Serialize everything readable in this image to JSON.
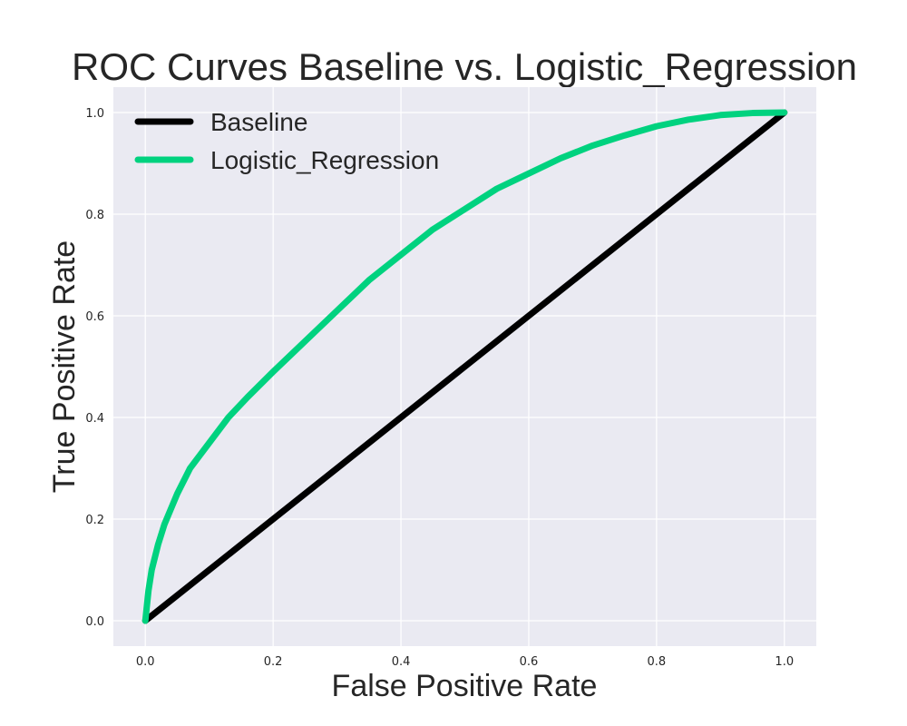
{
  "chart_data": {
    "type": "line",
    "title": "ROC Curves Baseline vs. Logistic_Regression",
    "xlabel": "False Positive Rate",
    "ylabel": "True Positive Rate",
    "xlim": [
      -0.05,
      1.05
    ],
    "ylim": [
      -0.05,
      1.05
    ],
    "xticks": [
      "0.0",
      "0.2",
      "0.4",
      "0.6",
      "0.8",
      "1.0"
    ],
    "yticks": [
      "0.0",
      "0.2",
      "0.4",
      "0.6",
      "0.8",
      "1.0"
    ],
    "xtick_values": [
      0,
      0.2,
      0.4,
      0.6,
      0.8,
      1.0
    ],
    "ytick_values": [
      0,
      0.2,
      0.4,
      0.6,
      0.8,
      1.0
    ],
    "grid": true,
    "background": "#eaeaf2",
    "legend_position": "top-left",
    "series": [
      {
        "name": "Baseline",
        "color": "#000000",
        "x": [
          0,
          1
        ],
        "y": [
          0,
          1
        ]
      },
      {
        "name": "Logistic_Regression",
        "color": "#00d27f",
        "x": [
          0,
          0.005,
          0.01,
          0.02,
          0.03,
          0.05,
          0.07,
          0.1,
          0.13,
          0.16,
          0.2,
          0.25,
          0.3,
          0.35,
          0.4,
          0.45,
          0.5,
          0.55,
          0.6,
          0.65,
          0.7,
          0.75,
          0.8,
          0.85,
          0.9,
          0.95,
          1.0
        ],
        "y": [
          0,
          0.06,
          0.1,
          0.15,
          0.19,
          0.25,
          0.3,
          0.35,
          0.4,
          0.44,
          0.49,
          0.55,
          0.61,
          0.67,
          0.72,
          0.77,
          0.81,
          0.85,
          0.88,
          0.91,
          0.935,
          0.955,
          0.973,
          0.986,
          0.995,
          0.999,
          1.0
        ]
      }
    ]
  }
}
